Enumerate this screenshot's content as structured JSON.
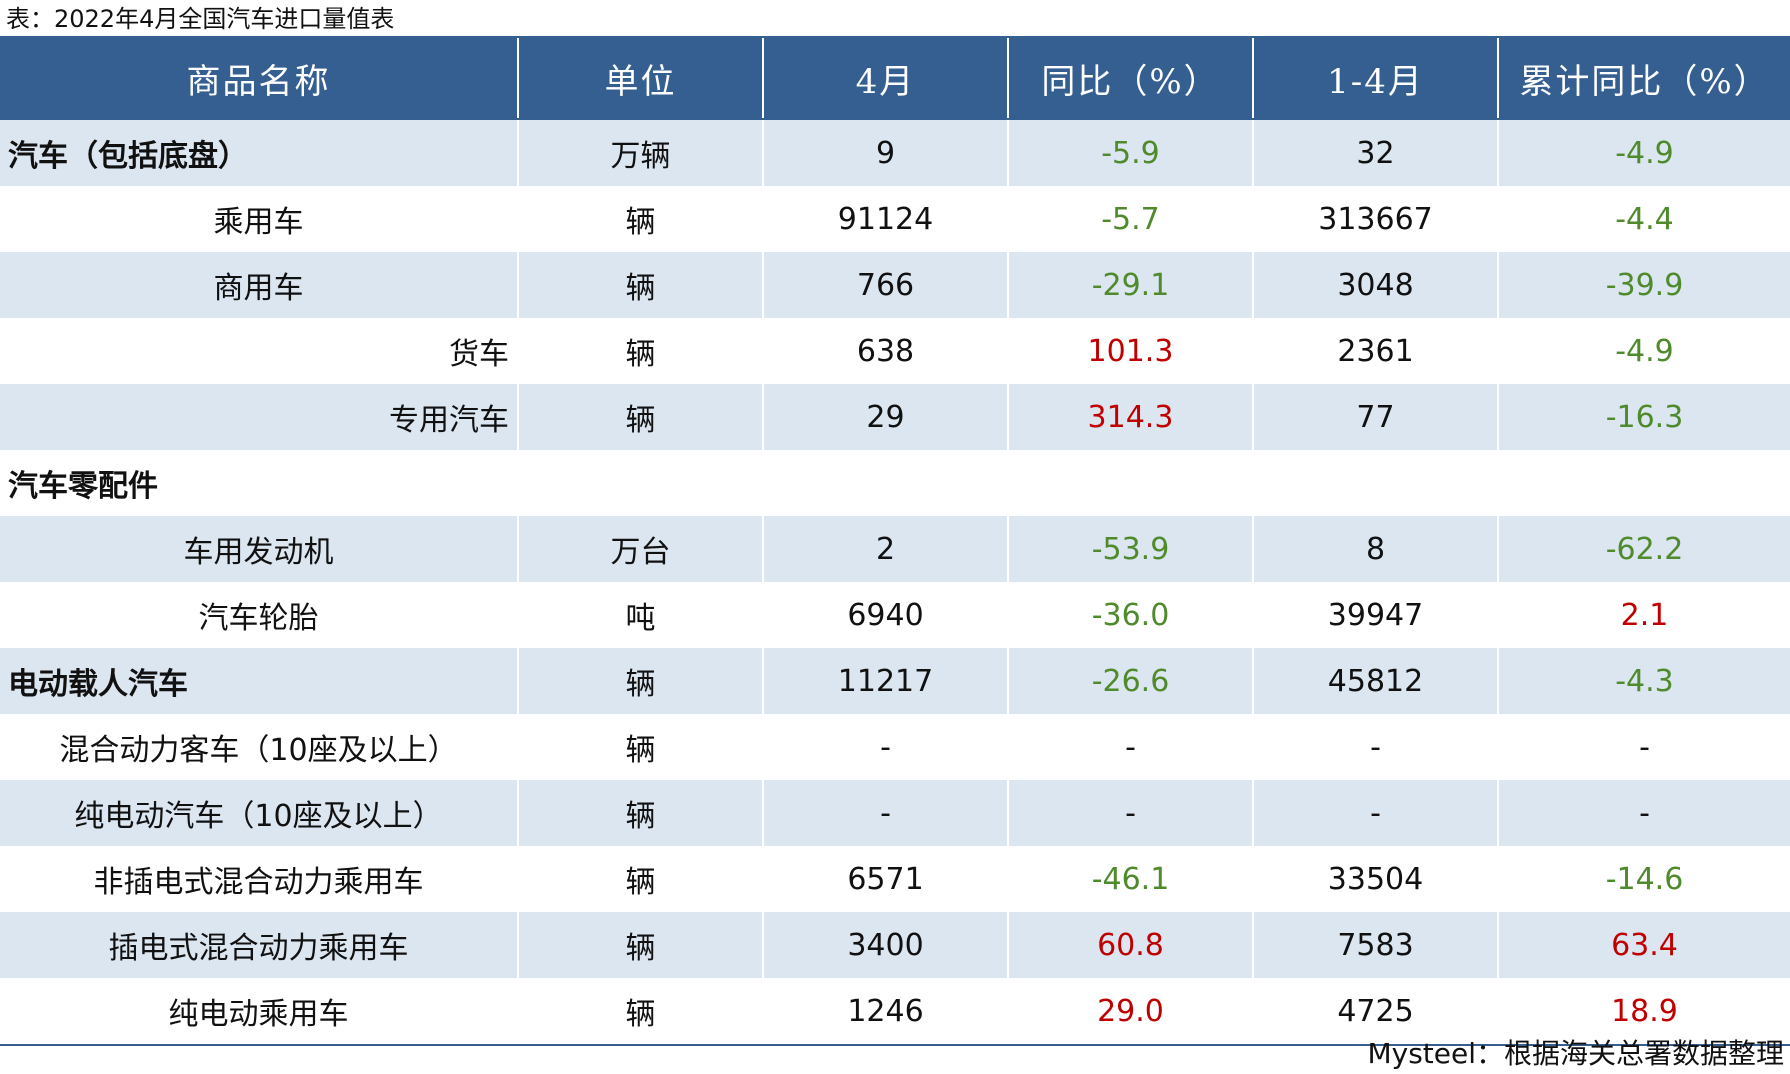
{
  "caption": "表：2022年4月全国汽车进口量值表",
  "headers": [
    "商品名称",
    "单位",
    "4月",
    "同比（%）",
    "1-4月",
    "累计同比（%）"
  ],
  "rows": [
    {
      "name": "汽车（包括底盘）",
      "indent": "bold",
      "unit": "万辆",
      "month": "9",
      "yoy": "-5.9",
      "ytd": "32",
      "ytd_yoy": "-4.9"
    },
    {
      "name": "乘用车",
      "indent": "center",
      "unit": "辆",
      "month": "91124",
      "yoy": "-5.7",
      "ytd": "313667",
      "ytd_yoy": "-4.4"
    },
    {
      "name": "商用车",
      "indent": "center",
      "unit": "辆",
      "month": "766",
      "yoy": "-29.1",
      "ytd": "3048",
      "ytd_yoy": "-39.9"
    },
    {
      "name": "货车",
      "indent": "right",
      "unit": "辆",
      "month": "638",
      "yoy": "101.3",
      "ytd": "2361",
      "ytd_yoy": "-4.9"
    },
    {
      "name": "专用汽车",
      "indent": "right",
      "unit": "辆",
      "month": "29",
      "yoy": "314.3",
      "ytd": "77",
      "ytd_yoy": "-16.3"
    },
    {
      "name": "汽车零配件",
      "indent": "bold",
      "unit": "",
      "month": "",
      "yoy": "",
      "ytd": "",
      "ytd_yoy": ""
    },
    {
      "name": "车用发动机",
      "indent": "center",
      "unit": "万台",
      "month": "2",
      "yoy": "-53.9",
      "ytd": "8",
      "ytd_yoy": "-62.2"
    },
    {
      "name": "汽车轮胎",
      "indent": "center",
      "unit": "吨",
      "month": "6940",
      "yoy": "-36.0",
      "ytd": "39947",
      "ytd_yoy": "2.1"
    },
    {
      "name": "电动载人汽车",
      "indent": "bold",
      "unit": "辆",
      "month": "11217",
      "yoy": "-26.6",
      "ytd": "45812",
      "ytd_yoy": "-4.3"
    },
    {
      "name": "混合动力客车（10座及以上）",
      "indent": "center",
      "unit": "辆",
      "month": "-",
      "yoy": "-",
      "ytd": "-",
      "ytd_yoy": "-"
    },
    {
      "name": "纯电动汽车（10座及以上）",
      "indent": "center",
      "unit": "辆",
      "month": "-",
      "yoy": "-",
      "ytd": "-",
      "ytd_yoy": "-"
    },
    {
      "name": "非插电式混合动力乘用车",
      "indent": "center",
      "unit": "辆",
      "month": "6571",
      "yoy": "-46.1",
      "ytd": "33504",
      "ytd_yoy": "-14.6"
    },
    {
      "name": "插电式混合动力乘用车",
      "indent": "center",
      "unit": "辆",
      "month": "3400",
      "yoy": "60.8",
      "ytd": "7583",
      "ytd_yoy": "63.4"
    },
    {
      "name": "纯电动乘用车",
      "indent": "center",
      "unit": "辆",
      "month": "1246",
      "yoy": "29.0",
      "ytd": "4725",
      "ytd_yoy": "18.9"
    }
  ],
  "colors": {
    "header_bg": "#365f91",
    "stripe": "#dce6f1",
    "negative": "#4f8a2c",
    "positive": "#c00000"
  },
  "source": "Mysteel：根据海关总署数据整理"
}
